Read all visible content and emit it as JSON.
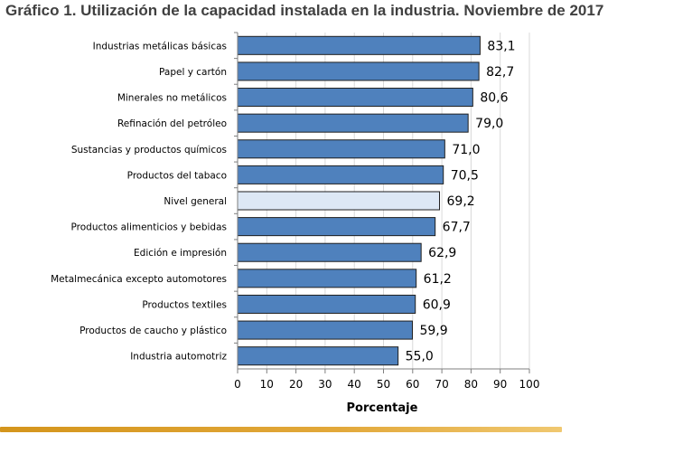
{
  "chart_data": {
    "type": "bar",
    "orientation": "horizontal",
    "title": "Gráfico 1. Utilización de la capacidad instalada en la industria. Noviembre de 2017",
    "xlabel": "Porcentaje",
    "ylabel": "",
    "xlim": [
      0,
      100
    ],
    "xticks": [
      "0",
      "10",
      "20",
      "30",
      "40",
      "50",
      "60",
      "70",
      "80",
      "90",
      "100"
    ],
    "categories": [
      "Industrias metálicas básicas",
      "Papel y cartón",
      "Minerales no metálicos",
      "Refinación del petróleo",
      "Sustancias y productos químicos",
      "Productos del tabaco",
      "Nivel general",
      "Productos alimenticios y bebidas",
      "Edición e impresión",
      "Metalmecánica excepto automotores",
      "Productos textiles",
      "Productos de caucho y plástico",
      "Industria automotriz"
    ],
    "values": [
      83.1,
      82.7,
      80.6,
      79.0,
      71.0,
      70.5,
      69.2,
      67.7,
      62.9,
      61.2,
      60.9,
      59.9,
      55.0
    ],
    "value_labels": [
      "83,1",
      "82,7",
      "80,6",
      "79,0",
      "71,0",
      "70,5",
      "69,2",
      "67,7",
      "62,9",
      "61,2",
      "60,9",
      "59,9",
      "55,0"
    ],
    "highlight_category": "Nivel general",
    "colors": {
      "bar": "#4f81bd",
      "bar_highlight": "#dde8f5",
      "bar_stroke": "#1f1f1f",
      "grid": "#d9d9d9",
      "accent_rule": "#e2a83a"
    },
    "grid": true
  }
}
